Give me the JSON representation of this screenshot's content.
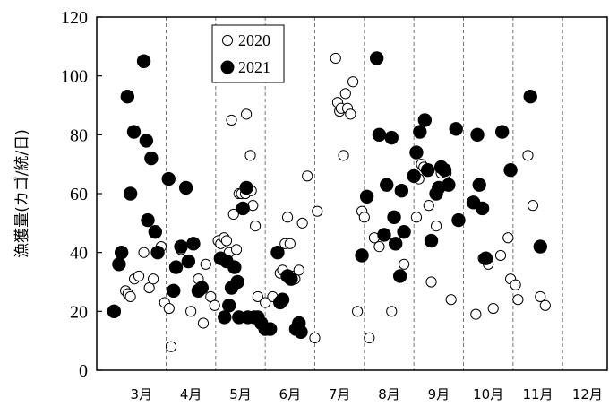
{
  "chart_data": {
    "type": "scatter",
    "ylabel": "漁獲量(カゴ/統/日)",
    "xlabel": "",
    "ylim": [
      0,
      120
    ],
    "yticks": [
      0,
      20,
      40,
      60,
      80,
      100,
      120
    ],
    "x_unit": "month",
    "xlim": [
      2.6,
      12.9
    ],
    "month_labels": [
      "3月",
      "4月",
      "5月",
      "6月",
      "7月",
      "8月",
      "9月",
      "10月",
      "11月",
      "12月"
    ],
    "month_label_positions": [
      3.5,
      4.5,
      5.5,
      6.5,
      7.5,
      8.5,
      9.5,
      10.5,
      11.5,
      12.5
    ],
    "gridlines_x": [
      4,
      5,
      6,
      7,
      8,
      9,
      10,
      11,
      12
    ],
    "grid": "dashed vertical at month boundaries",
    "legend": "top-left inside plot",
    "series": [
      {
        "name": "2020",
        "marker": "open-circle",
        "color": "#000000",
        "points": [
          [
            3.18,
            27
          ],
          [
            3.23,
            26
          ],
          [
            3.28,
            25
          ],
          [
            3.36,
            31
          ],
          [
            3.45,
            32
          ],
          [
            3.55,
            40
          ],
          [
            3.66,
            28
          ],
          [
            3.74,
            31
          ],
          [
            3.9,
            42
          ],
          [
            3.97,
            23
          ],
          [
            4.06,
            21
          ],
          [
            4.1,
            8
          ],
          [
            4.3,
            41
          ],
          [
            4.5,
            20
          ],
          [
            4.65,
            31
          ],
          [
            4.75,
            16
          ],
          [
            4.8,
            36
          ],
          [
            4.9,
            25
          ],
          [
            4.98,
            22
          ],
          [
            5.05,
            44
          ],
          [
            5.1,
            43
          ],
          [
            5.17,
            45
          ],
          [
            5.22,
            44
          ],
          [
            5.27,
            40
          ],
          [
            5.32,
            85
          ],
          [
            5.36,
            53
          ],
          [
            5.42,
            41
          ],
          [
            5.47,
            60
          ],
          [
            5.52,
            60
          ],
          [
            5.6,
            60
          ],
          [
            5.62,
            87
          ],
          [
            5.7,
            73
          ],
          [
            5.72,
            61
          ],
          [
            5.75,
            56
          ],
          [
            5.8,
            49
          ],
          [
            5.85,
            25
          ],
          [
            6.0,
            23
          ],
          [
            6.15,
            25
          ],
          [
            6.3,
            33
          ],
          [
            6.35,
            34
          ],
          [
            6.4,
            43
          ],
          [
            6.45,
            52
          ],
          [
            6.5,
            43
          ],
          [
            6.55,
            32
          ],
          [
            6.6,
            31
          ],
          [
            6.68,
            34
          ],
          [
            6.75,
            50
          ],
          [
            6.85,
            66
          ],
          [
            7.0,
            11
          ],
          [
            7.05,
            54
          ],
          [
            7.42,
            106
          ],
          [
            7.46,
            91
          ],
          [
            7.5,
            88
          ],
          [
            7.53,
            89
          ],
          [
            7.58,
            73
          ],
          [
            7.62,
            94
          ],
          [
            7.66,
            89
          ],
          [
            7.72,
            87
          ],
          [
            7.77,
            98
          ],
          [
            7.86,
            20
          ],
          [
            7.95,
            54
          ],
          [
            8.0,
            52
          ],
          [
            8.1,
            11
          ],
          [
            8.2,
            45
          ],
          [
            8.3,
            42
          ],
          [
            8.55,
            20
          ],
          [
            8.8,
            36
          ],
          [
            9.05,
            52
          ],
          [
            9.1,
            65
          ],
          [
            9.15,
            70
          ],
          [
            9.2,
            69
          ],
          [
            9.3,
            56
          ],
          [
            9.35,
            30
          ],
          [
            9.45,
            49
          ],
          [
            9.55,
            67
          ],
          [
            9.62,
            68
          ],
          [
            9.65,
            67
          ],
          [
            9.75,
            24
          ],
          [
            10.25,
            19
          ],
          [
            10.4,
            38
          ],
          [
            10.5,
            36
          ],
          [
            10.6,
            21
          ],
          [
            10.75,
            39
          ],
          [
            10.9,
            45
          ],
          [
            10.95,
            31
          ],
          [
            11.05,
            29
          ],
          [
            11.1,
            24
          ],
          [
            11.3,
            73
          ],
          [
            11.4,
            56
          ],
          [
            11.55,
            25
          ],
          [
            11.65,
            22
          ]
        ]
      },
      {
        "name": "2021",
        "marker": "filled-circle",
        "color": "#000000",
        "points": [
          [
            2.95,
            20
          ],
          [
            3.05,
            36
          ],
          [
            3.1,
            40
          ],
          [
            3.22,
            93
          ],
          [
            3.28,
            60
          ],
          [
            3.35,
            81
          ],
          [
            3.55,
            105
          ],
          [
            3.6,
            78
          ],
          [
            3.63,
            51
          ],
          [
            3.7,
            72
          ],
          [
            3.78,
            47
          ],
          [
            3.83,
            40
          ],
          [
            4.05,
            65
          ],
          [
            4.15,
            27
          ],
          [
            4.2,
            35
          ],
          [
            4.3,
            42
          ],
          [
            4.4,
            62
          ],
          [
            4.45,
            37
          ],
          [
            4.55,
            43
          ],
          [
            4.65,
            27
          ],
          [
            4.72,
            28
          ],
          [
            5.1,
            38
          ],
          [
            5.18,
            18
          ],
          [
            5.22,
            37
          ],
          [
            5.27,
            22
          ],
          [
            5.32,
            28
          ],
          [
            5.38,
            35
          ],
          [
            5.44,
            30
          ],
          [
            5.47,
            18
          ],
          [
            5.55,
            55
          ],
          [
            5.62,
            62
          ],
          [
            5.65,
            18
          ],
          [
            5.78,
            18
          ],
          [
            5.85,
            18
          ],
          [
            5.92,
            16
          ],
          [
            6.0,
            14
          ],
          [
            6.1,
            14
          ],
          [
            6.25,
            40
          ],
          [
            6.3,
            23
          ],
          [
            6.35,
            24
          ],
          [
            6.45,
            32
          ],
          [
            6.52,
            31
          ],
          [
            6.62,
            14
          ],
          [
            6.68,
            16
          ],
          [
            6.72,
            13
          ],
          [
            7.95,
            39
          ],
          [
            8.05,
            59
          ],
          [
            8.25,
            106
          ],
          [
            8.3,
            80
          ],
          [
            8.4,
            46
          ],
          [
            8.45,
            63
          ],
          [
            8.55,
            79
          ],
          [
            8.6,
            52
          ],
          [
            8.63,
            43
          ],
          [
            8.72,
            32
          ],
          [
            8.75,
            61
          ],
          [
            8.8,
            47
          ],
          [
            9.0,
            66
          ],
          [
            9.05,
            74
          ],
          [
            9.12,
            81
          ],
          [
            9.22,
            85
          ],
          [
            9.28,
            68
          ],
          [
            9.35,
            44
          ],
          [
            9.45,
            60
          ],
          [
            9.5,
            62
          ],
          [
            9.55,
            69
          ],
          [
            9.62,
            68
          ],
          [
            9.7,
            63
          ],
          [
            9.85,
            82
          ],
          [
            9.9,
            51
          ],
          [
            10.2,
            57
          ],
          [
            10.28,
            80
          ],
          [
            10.32,
            63
          ],
          [
            10.38,
            55
          ],
          [
            10.45,
            38
          ],
          [
            10.78,
            81
          ],
          [
            10.95,
            68
          ],
          [
            11.35,
            93
          ],
          [
            11.55,
            42
          ]
        ]
      }
    ]
  }
}
